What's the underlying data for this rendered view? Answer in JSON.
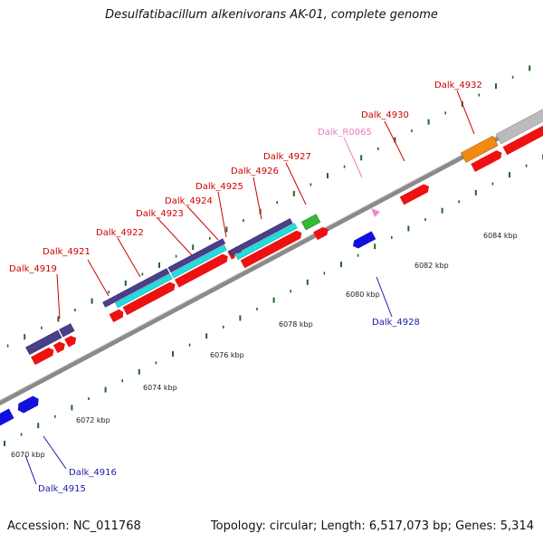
{
  "title": "Desulfatibacillum alkenivorans AK-01, complete genome",
  "footer": {
    "accession": "Accession: NC_011768",
    "summary": "Topology: circular; Length: 6,517,073 bp; Genes: 5,314"
  },
  "ruler_labels": [
    "6070 kbp",
    "6072 kbp",
    "6074 kbp",
    "6076 kbp",
    "6078 kbp",
    "6080 kbp",
    "6082 kbp",
    "6084 kbp"
  ],
  "gene_labels_top": [
    "Dalk_4919",
    "Dalk_4921",
    "Dalk_4922",
    "Dalk_4923",
    "Dalk_4924",
    "Dalk_4925",
    "Dalk_4926",
    "Dalk_4927",
    "Dalk_R0065",
    "Dalk_4930",
    "Dalk_4932"
  ],
  "gene_labels_bottom": [
    "Dalk_4915",
    "Dalk_4916",
    "Dalk_4928"
  ],
  "colors": {
    "forward_gene": "#ee1111",
    "reverse_gene": "#1111dd",
    "cog_purple": "#4a3f8a",
    "cog_cyan": "#22dddd",
    "cog_green": "#33bb33",
    "cog_orange": "#f08a10",
    "cog_gray": "#bbbbbb",
    "rna_pink": "#f28ac8",
    "label_red": "#cc0000",
    "label_blue": "#1a1aaa",
    "label_pink": "#e880b8",
    "tick_green": "#226622",
    "backbone": "#777777"
  }
}
